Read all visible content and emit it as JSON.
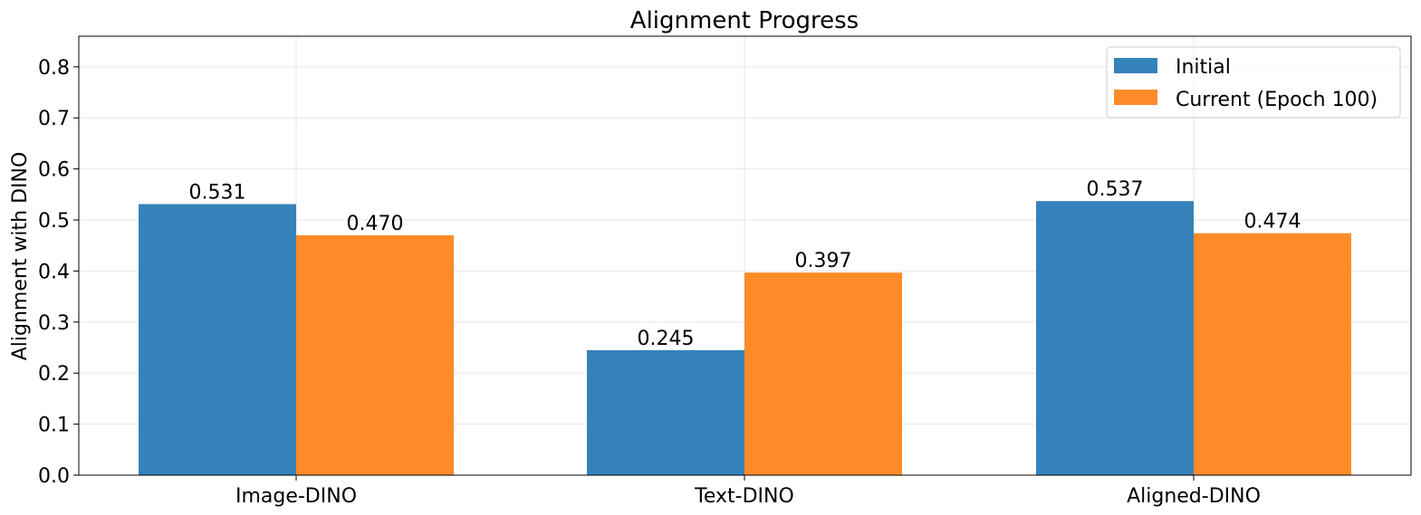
{
  "chart_data": {
    "type": "bar",
    "title": "Alignment Progress",
    "xlabel": "",
    "ylabel": "Alignment with DINO",
    "categories": [
      "Image-DINO",
      "Text-DINO",
      "Aligned-DINO"
    ],
    "series": [
      {
        "name": "Initial",
        "values": [
          0.531,
          0.245,
          0.537
        ],
        "labels": [
          "0.531",
          "0.245",
          "0.537"
        ],
        "color": "#3682bb"
      },
      {
        "name": "Current (Epoch 100)",
        "values": [
          0.47,
          0.397,
          0.474
        ],
        "labels": [
          "0.470",
          "0.397",
          "0.474"
        ],
        "color": "#ff8b28"
      }
    ],
    "ylim": [
      0,
      0.86
    ],
    "yticks": [
      "0.0",
      "0.1",
      "0.2",
      "0.3",
      "0.4",
      "0.5",
      "0.6",
      "0.7",
      "0.8"
    ],
    "grid": true,
    "legend_position": "top-right"
  }
}
